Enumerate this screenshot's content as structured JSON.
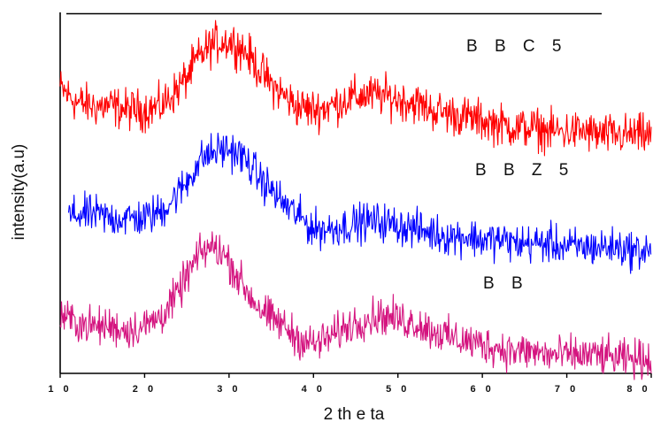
{
  "chart_data": {
    "type": "line",
    "xlabel": "2 th e ta",
    "ylabel": "intensity(a.u)",
    "xlim": [
      10,
      80
    ],
    "xticks": [
      10,
      20,
      30,
      40,
      50,
      60,
      70,
      80
    ],
    "xtick_labels": [
      "1 0",
      "2 0",
      "3 0",
      "4 0",
      "5 0",
      "6 0",
      "7 0",
      "8 0"
    ],
    "y_tick_labels": false,
    "grid": false,
    "series": [
      {
        "name": "B B C 5",
        "color": "#ff0000",
        "x": [
          10,
          12,
          14,
          16,
          18,
          20,
          22,
          24,
          25,
          26,
          27,
          28,
          29,
          30,
          31,
          32,
          33,
          34,
          35,
          36,
          38,
          40,
          42,
          44,
          46,
          48,
          50,
          52,
          54,
          56,
          58,
          60,
          62,
          64,
          66,
          68,
          70,
          72,
          74,
          76,
          78,
          80
        ],
        "y": [
          0.79,
          0.75,
          0.74,
          0.74,
          0.73,
          0.73,
          0.74,
          0.79,
          0.82,
          0.86,
          0.89,
          0.91,
          0.92,
          0.92,
          0.91,
          0.89,
          0.86,
          0.83,
          0.8,
          0.78,
          0.74,
          0.73,
          0.74,
          0.76,
          0.77,
          0.77,
          0.76,
          0.75,
          0.73,
          0.72,
          0.71,
          0.7,
          0.69,
          0.68,
          0.68,
          0.67,
          0.67,
          0.67,
          0.66,
          0.66,
          0.66,
          0.66
        ],
        "noise": 0.028
      },
      {
        "name": "B B Z 5",
        "color": "#0000ff",
        "x": [
          10,
          12,
          14,
          16,
          18,
          20,
          22,
          24,
          25,
          26,
          27,
          28,
          29,
          30,
          31,
          32,
          33,
          34,
          35,
          36,
          38,
          40,
          42,
          44,
          46,
          48,
          50,
          52,
          54,
          56,
          58,
          60,
          62,
          64,
          66,
          68,
          70,
          72,
          74,
          76,
          78,
          80
        ],
        "y": [
          0.43,
          0.44,
          0.44,
          0.43,
          0.43,
          0.43,
          0.45,
          0.5,
          0.53,
          0.57,
          0.6,
          0.61,
          0.62,
          0.62,
          0.61,
          0.59,
          0.56,
          0.53,
          0.51,
          0.48,
          0.44,
          0.4,
          0.4,
          0.41,
          0.42,
          0.42,
          0.41,
          0.4,
          0.39,
          0.38,
          0.38,
          0.37,
          0.37,
          0.36,
          0.36,
          0.36,
          0.35,
          0.35,
          0.35,
          0.35,
          0.34,
          0.34
        ],
        "noise": 0.026
      },
      {
        "name": "B B",
        "color": "#d4147f",
        "x": [
          10,
          12,
          14,
          16,
          18,
          20,
          22,
          24,
          25,
          26,
          27,
          28,
          29,
          30,
          31,
          32,
          33,
          34,
          35,
          36,
          38,
          40,
          42,
          44,
          46,
          48,
          50,
          52,
          54,
          56,
          58,
          60,
          62,
          64,
          66,
          68,
          70,
          72,
          74,
          76,
          78,
          80
        ],
        "y": [
          0.16,
          0.14,
          0.13,
          0.13,
          0.12,
          0.13,
          0.16,
          0.22,
          0.27,
          0.31,
          0.34,
          0.35,
          0.34,
          0.31,
          0.27,
          0.23,
          0.2,
          0.17,
          0.15,
          0.14,
          0.1,
          0.08,
          0.1,
          0.13,
          0.15,
          0.16,
          0.15,
          0.14,
          0.12,
          0.1,
          0.09,
          0.08,
          0.07,
          0.06,
          0.06,
          0.05,
          0.05,
          0.05,
          0.05,
          0.04,
          0.04,
          0.04
        ],
        "noise": 0.026
      }
    ]
  }
}
